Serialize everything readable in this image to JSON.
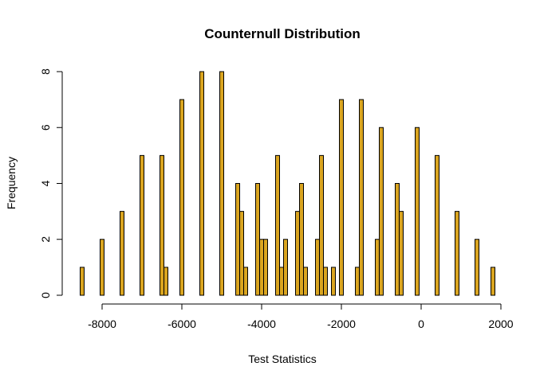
{
  "chart_data": {
    "type": "bar",
    "title": "Counternull Distribution",
    "xlabel": "Test Statistics",
    "ylabel": "Frequency",
    "bar_color": "#DAA520",
    "border_color": "#000000",
    "bin_width": 100,
    "xlim": [
      -8600,
      1900
    ],
    "ylim": [
      0,
      8
    ],
    "x_ticks": [
      -8000,
      -6000,
      -4000,
      -2000,
      0,
      2000
    ],
    "x_tick_labels": [
      "-8000",
      "-6000",
      "-4000",
      "-2000",
      "0",
      "2000"
    ],
    "y_ticks": [
      0,
      2,
      4,
      6,
      8
    ],
    "y_tick_labels": [
      "0",
      "2",
      "4",
      "6",
      "8"
    ],
    "grid": false,
    "bins": [
      {
        "x": -8500,
        "count": 1
      },
      {
        "x": -8000,
        "count": 2
      },
      {
        "x": -7500,
        "count": 3
      },
      {
        "x": -7000,
        "count": 5
      },
      {
        "x": -6500,
        "count": 5
      },
      {
        "x": -6400,
        "count": 1
      },
      {
        "x": -6000,
        "count": 7
      },
      {
        "x": -5500,
        "count": 8
      },
      {
        "x": -5000,
        "count": 8
      },
      {
        "x": -4600,
        "count": 4
      },
      {
        "x": -4500,
        "count": 3
      },
      {
        "x": -4400,
        "count": 1
      },
      {
        "x": -4100,
        "count": 4
      },
      {
        "x": -4000,
        "count": 2
      },
      {
        "x": -3900,
        "count": 2
      },
      {
        "x": -3600,
        "count": 5
      },
      {
        "x": -3500,
        "count": 1
      },
      {
        "x": -3400,
        "count": 2
      },
      {
        "x": -3100,
        "count": 3
      },
      {
        "x": -3000,
        "count": 4
      },
      {
        "x": -2900,
        "count": 1
      },
      {
        "x": -2600,
        "count": 2
      },
      {
        "x": -2500,
        "count": 5
      },
      {
        "x": -2400,
        "count": 1
      },
      {
        "x": -2200,
        "count": 1
      },
      {
        "x": -2000,
        "count": 7
      },
      {
        "x": -1600,
        "count": 1
      },
      {
        "x": -1500,
        "count": 7
      },
      {
        "x": -1100,
        "count": 2
      },
      {
        "x": -1000,
        "count": 6
      },
      {
        "x": -600,
        "count": 4
      },
      {
        "x": -500,
        "count": 3
      },
      {
        "x": -100,
        "count": 6
      },
      {
        "x": 400,
        "count": 5
      },
      {
        "x": 900,
        "count": 3
      },
      {
        "x": 1400,
        "count": 2
      },
      {
        "x": 1800,
        "count": 1
      }
    ]
  }
}
